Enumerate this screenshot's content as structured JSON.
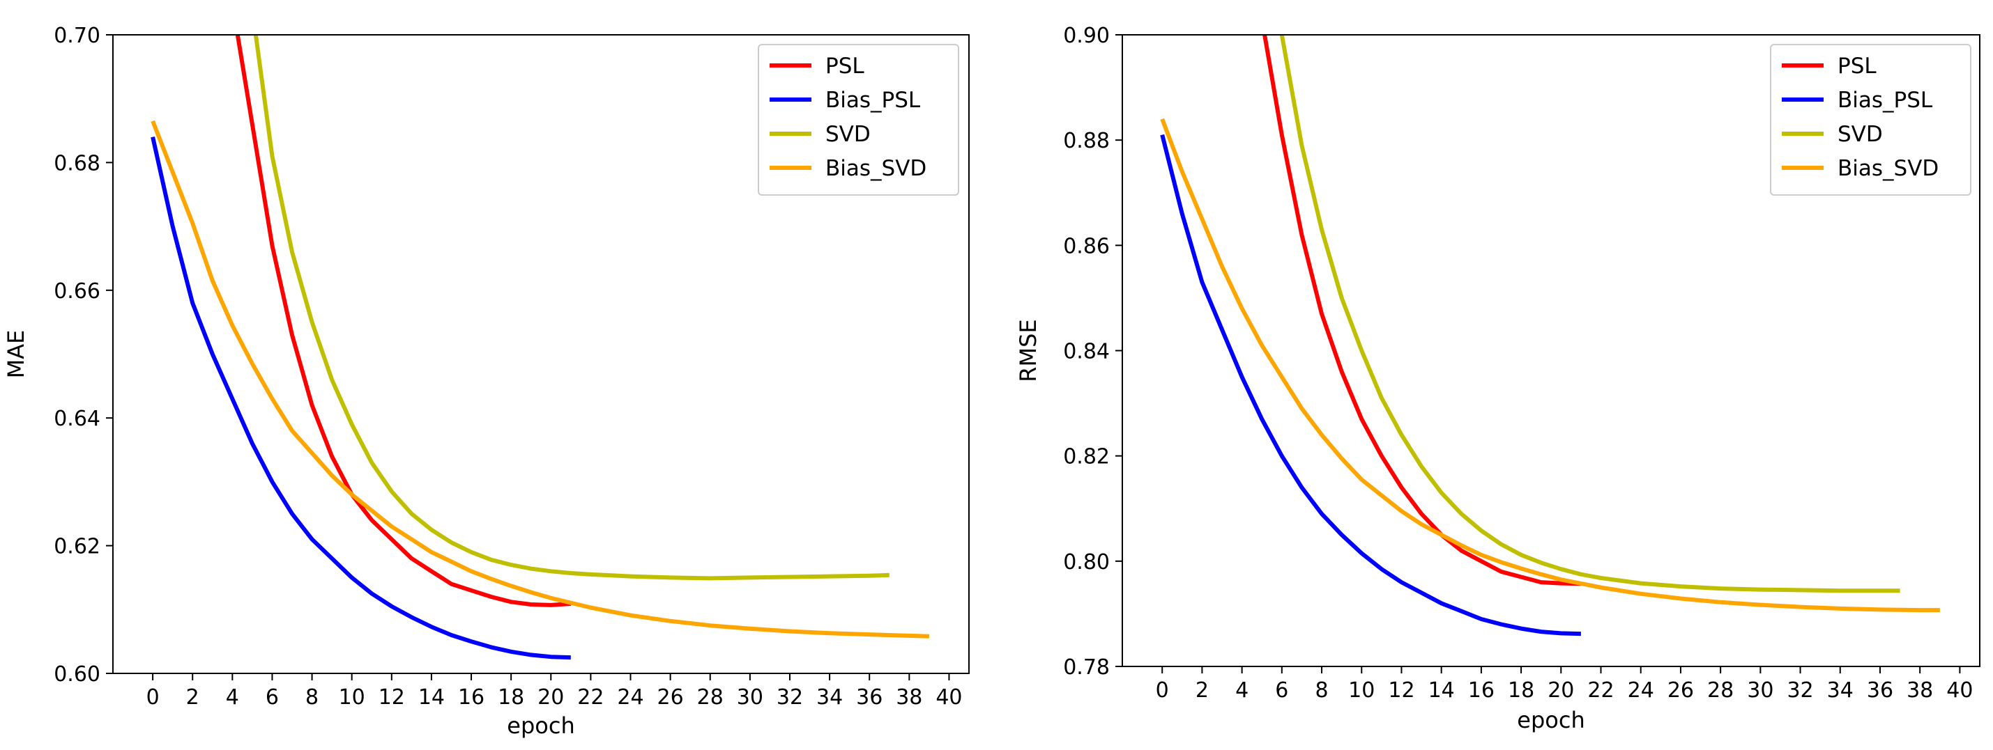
{
  "chart_data": [
    {
      "type": "line",
      "title": "",
      "xlabel": "epoch",
      "ylabel": "MAE",
      "xlim": [
        -2,
        41
      ],
      "ylim": [
        0.6,
        0.7
      ],
      "xticks": [
        0,
        2,
        4,
        6,
        8,
        10,
        12,
        14,
        16,
        18,
        20,
        22,
        24,
        26,
        28,
        30,
        32,
        34,
        36,
        38,
        40
      ],
      "yticks": [
        0.6,
        0.62,
        0.64,
        0.66,
        0.68,
        0.7
      ],
      "ytick_decimals": 2,
      "grid": false,
      "legend": "top-right",
      "series": [
        {
          "name": "PSL",
          "color": "#ff0000",
          "x": [
            4,
            5,
            6,
            7,
            8,
            9,
            10,
            11,
            12,
            13,
            14,
            15,
            16,
            17,
            18,
            19,
            20,
            21
          ],
          "y": [
            0.705,
            0.686,
            0.667,
            0.653,
            0.642,
            0.634,
            0.628,
            0.624,
            0.621,
            0.618,
            0.616,
            0.614,
            0.613,
            0.612,
            0.6112,
            0.6108,
            0.6107,
            0.6109
          ]
        },
        {
          "name": "Bias_PSL",
          "color": "#0000ff",
          "x": [
            0,
            1,
            2,
            3,
            4,
            5,
            6,
            7,
            8,
            9,
            10,
            11,
            12,
            13,
            14,
            15,
            16,
            17,
            18,
            19,
            20,
            21
          ],
          "y": [
            0.684,
            0.67,
            0.658,
            0.65,
            0.643,
            0.636,
            0.63,
            0.625,
            0.621,
            0.618,
            0.615,
            0.6125,
            0.6105,
            0.6088,
            0.6073,
            0.606,
            0.605,
            0.6041,
            0.6034,
            0.6029,
            0.6026,
            0.6025
          ]
        },
        {
          "name": "SVD",
          "color": "#bfbf00",
          "x": [
            5,
            6,
            7,
            8,
            9,
            10,
            11,
            12,
            13,
            14,
            15,
            16,
            17,
            18,
            19,
            20,
            21,
            22,
            24,
            26,
            28,
            30,
            32,
            34,
            36,
            37
          ],
          "y": [
            0.704,
            0.681,
            0.666,
            0.655,
            0.646,
            0.639,
            0.633,
            0.6285,
            0.625,
            0.6225,
            0.6205,
            0.619,
            0.6178,
            0.617,
            0.6164,
            0.616,
            0.6157,
            0.6155,
            0.6152,
            0.615,
            0.6149,
            0.615,
            0.6151,
            0.6152,
            0.6153,
            0.6154
          ]
        },
        {
          "name": "Bias_SVD",
          "color": "#ffa500",
          "x": [
            0,
            1,
            2,
            3,
            4,
            5,
            6,
            7,
            8,
            9,
            10,
            11,
            12,
            13,
            14,
            15,
            16,
            17,
            18,
            19,
            20,
            22,
            24,
            26,
            28,
            30,
            32,
            34,
            36,
            38,
            39
          ],
          "y": [
            0.6865,
            0.6785,
            0.6705,
            0.6615,
            0.6545,
            0.6485,
            0.643,
            0.638,
            0.6345,
            0.631,
            0.628,
            0.6255,
            0.623,
            0.621,
            0.619,
            0.6175,
            0.616,
            0.6148,
            0.6137,
            0.6127,
            0.6118,
            0.6103,
            0.6091,
            0.6082,
            0.6075,
            0.607,
            0.6066,
            0.6063,
            0.6061,
            0.6059,
            0.6058
          ]
        }
      ]
    },
    {
      "type": "line",
      "title": "",
      "xlabel": "epoch",
      "ylabel": "RMSE",
      "xlim": [
        -2,
        41
      ],
      "ylim": [
        0.78,
        0.9
      ],
      "xticks": [
        0,
        2,
        4,
        6,
        8,
        10,
        12,
        14,
        16,
        18,
        20,
        22,
        24,
        26,
        28,
        30,
        32,
        34,
        36,
        38,
        40
      ],
      "yticks": [
        0.78,
        0.8,
        0.82,
        0.84,
        0.86,
        0.88,
        0.9
      ],
      "ytick_decimals": 2,
      "grid": false,
      "legend": "top-right",
      "series": [
        {
          "name": "PSL",
          "color": "#ff0000",
          "x": [
            5,
            6,
            7,
            8,
            9,
            10,
            11,
            12,
            13,
            14,
            15,
            16,
            17,
            18,
            19,
            20,
            21
          ],
          "y": [
            0.903,
            0.881,
            0.862,
            0.847,
            0.836,
            0.827,
            0.82,
            0.814,
            0.809,
            0.805,
            0.802,
            0.8,
            0.798,
            0.797,
            0.796,
            0.7958,
            0.7957
          ]
        },
        {
          "name": "Bias_PSL",
          "color": "#0000ff",
          "x": [
            0,
            1,
            2,
            3,
            4,
            5,
            6,
            7,
            8,
            9,
            10,
            11,
            12,
            13,
            14,
            15,
            16,
            17,
            18,
            19,
            20,
            21
          ],
          "y": [
            0.881,
            0.866,
            0.853,
            0.844,
            0.835,
            0.827,
            0.82,
            0.814,
            0.809,
            0.805,
            0.8015,
            0.7985,
            0.796,
            0.794,
            0.792,
            0.7905,
            0.789,
            0.788,
            0.7872,
            0.7866,
            0.7863,
            0.7862
          ]
        },
        {
          "name": "SVD",
          "color": "#bfbf00",
          "x": [
            6,
            7,
            8,
            9,
            10,
            11,
            12,
            13,
            14,
            15,
            16,
            17,
            18,
            19,
            20,
            21,
            22,
            24,
            26,
            28,
            30,
            32,
            34,
            36,
            37
          ],
          "y": [
            0.9,
            0.879,
            0.863,
            0.85,
            0.84,
            0.831,
            0.824,
            0.818,
            0.813,
            0.809,
            0.8058,
            0.8032,
            0.8012,
            0.7997,
            0.7985,
            0.7975,
            0.7968,
            0.7958,
            0.7952,
            0.7948,
            0.7946,
            0.7945,
            0.7944,
            0.7944,
            0.7944
          ]
        },
        {
          "name": "Bias_SVD",
          "color": "#ffa500",
          "x": [
            0,
            1,
            2,
            3,
            4,
            5,
            6,
            7,
            8,
            9,
            10,
            11,
            12,
            13,
            14,
            15,
            16,
            17,
            18,
            19,
            20,
            22,
            24,
            26,
            28,
            30,
            32,
            34,
            36,
            38,
            39
          ],
          "y": [
            0.884,
            0.874,
            0.865,
            0.856,
            0.848,
            0.841,
            0.835,
            0.829,
            0.824,
            0.8195,
            0.8155,
            0.8125,
            0.8095,
            0.807,
            0.805,
            0.803,
            0.8012,
            0.7998,
            0.7986,
            0.7975,
            0.7965,
            0.795,
            0.7938,
            0.7929,
            0.7922,
            0.7917,
            0.7913,
            0.791,
            0.7908,
            0.7907,
            0.7907
          ]
        }
      ]
    }
  ]
}
